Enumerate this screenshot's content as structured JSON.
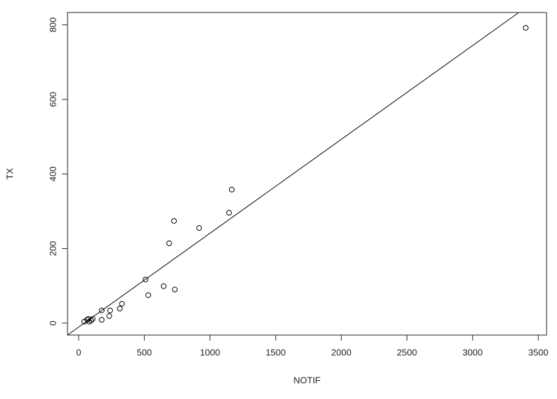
{
  "chart_data": {
    "type": "scatter",
    "x_label": "NOTIF",
    "y_label": "TX",
    "x": [
      3404,
      1166,
      1145,
      726,
      917,
      689,
      509,
      647,
      732,
      530,
      329,
      313,
      175,
      239,
      233,
      175,
      95,
      64,
      42,
      80,
      106,
      74
    ],
    "y": [
      792,
      358,
      296,
      274,
      255,
      214,
      117,
      99,
      90,
      75,
      52,
      39,
      34,
      34,
      19,
      9,
      7,
      9,
      4,
      4,
      11,
      11
    ],
    "color": "#000000",
    "fit_line": {
      "intercept": -10.6,
      "slope": 0.2517
    },
    "xlim": [
      -85,
      3563
    ],
    "ylim": [
      -32,
      833
    ],
    "xticks": [
      0,
      500,
      1000,
      1500,
      2000,
      2500,
      3000,
      3500
    ],
    "yticks": [
      0,
      200,
      400,
      600,
      800
    ]
  }
}
